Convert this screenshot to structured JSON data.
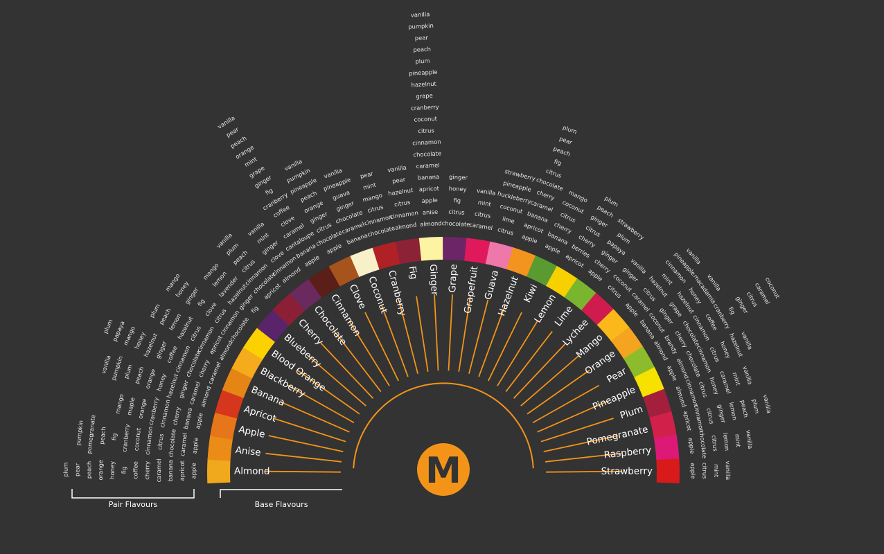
{
  "logo": {
    "letter": "M",
    "color": "#f39419"
  },
  "legend": {
    "pair_label": "Pair Flavours",
    "base_label": "Base Flavours"
  },
  "colors": {
    "background": "#333333",
    "spoke": "#f39419",
    "text": "#ffffff"
  },
  "flavours": [
    {
      "name": "Almond",
      "color": "#f0a81d",
      "pairs": [
        "apple",
        "apricot",
        "banana",
        "caramel",
        "cherry",
        "coffee",
        "fig",
        "honey",
        "orange",
        "peach",
        "pear",
        "plum"
      ]
    },
    {
      "name": "Anise",
      "color": "#ea8c16",
      "pairs": [
        "apple",
        "caramel",
        "chocolate",
        "citrus",
        "cinnamon",
        "coconut",
        "cranberry",
        "fig",
        "peach",
        "pomegranate",
        "pumpkin"
      ]
    },
    {
      "name": "Apple",
      "color": "#e7761a",
      "pairs": [
        "apple",
        "banana",
        "cherry",
        "cinnamon",
        "cranberry",
        "orange",
        "maple",
        "mango"
      ]
    },
    {
      "name": "Apricot",
      "color": "#d6361c",
      "pairs": [
        "almond",
        "caramel",
        "ginger",
        "hazelnut",
        "honey",
        "orange",
        "peach",
        "plum",
        "pumpkin",
        "vanilla"
      ]
    },
    {
      "name": "Banana",
      "color": "#e58515",
      "pairs": [
        "caramel",
        "cherry",
        "chocolate",
        "cinnamon",
        "coffee",
        "ginger",
        "hazelnut",
        "honey",
        "mango",
        "papaya",
        "plum"
      ]
    },
    {
      "name": "Blackberry",
      "color": "#f5ab1b",
      "pairs": [
        "almond",
        "apricot",
        "cinnamon",
        "citrus",
        "hazelnut",
        "lemon",
        "peach",
        "plum"
      ]
    },
    {
      "name": "Blood Orange",
      "color": "#fbd200",
      "pairs": [
        "chocolate",
        "cinnamon",
        "citrus",
        "clove",
        "fig",
        "ginger",
        "honey",
        "mango"
      ]
    },
    {
      "name": "Blueberry",
      "color": "#59246a",
      "pairs": [
        "fig",
        "ginger",
        "hazelnut",
        "lavender",
        "lemon",
        "mango"
      ]
    },
    {
      "name": "Cherry",
      "color": "#8a1f35",
      "pairs": [
        "apricot",
        "chocolate",
        "cinnamon",
        "citrus",
        "peach",
        "plum",
        "vanilla"
      ]
    },
    {
      "name": "Chocolate",
      "color": "#6a2a5e",
      "pairs": [
        "almond",
        "cinnamon",
        "clove",
        "ginger",
        "mint",
        "vanilla"
      ]
    },
    {
      "name": "Cinnamon",
      "color": "#5b1e18",
      "pairs": [
        "apple",
        "banana",
        "cantaloupe",
        "caramel",
        "clove",
        "coffee",
        "cranberry",
        "fig",
        "ginger",
        "grape",
        "mint",
        "orange",
        "peach",
        "pear",
        "vanilla"
      ]
    },
    {
      "name": "Clove",
      "color": "#a6531e",
      "pairs": [
        "apple",
        "chocolate",
        "citrus",
        "ginger",
        "orange",
        "peach",
        "pineapple",
        "pumpkin",
        "vanilla"
      ]
    },
    {
      "name": "Coconut",
      "color": "#f8f0c8",
      "pairs": [
        "banana",
        "caramel",
        "chocolate",
        "ginger",
        "guava",
        "pineapple",
        "vanilla"
      ]
    },
    {
      "name": "Cranberry",
      "color": "#b02126",
      "pairs": [
        "chocolate",
        "cinnamon",
        "citrus",
        "mango",
        "mint",
        "pear"
      ]
    },
    {
      "name": "Fig",
      "color": "#8b2236",
      "pairs": [
        "almond",
        "cinnamon",
        "citrus",
        "hazelnut",
        "pear",
        "vanilla"
      ]
    },
    {
      "name": "Ginger",
      "color": "#fdf4a3",
      "pairs": [
        "almond",
        "anise",
        "apple",
        "apricot",
        "banana",
        "caramel",
        "chocolate",
        "cinnamon",
        "citrus",
        "coconut",
        "cranberry",
        "grape",
        "hazelnut",
        "pineapple",
        "plum",
        "peach",
        "pear",
        "pumpkin",
        "vanilla"
      ]
    },
    {
      "name": "Grape",
      "color": "#6c2566",
      "pairs": [
        "chocolate",
        "citrus",
        "fig",
        "honey",
        "ginger"
      ]
    },
    {
      "name": "Grapefruit",
      "color": "#e0195c",
      "pairs": [
        "caramel",
        "citrus",
        "mint",
        "vanilla"
      ]
    },
    {
      "name": "Guava",
      "color": "#ee78aa",
      "pairs": [
        "citrus",
        "lime",
        "coconut",
        "huckleberry",
        "pineapple",
        "strawberry"
      ]
    },
    {
      "name": "Hazelnut",
      "color": "#f3941e",
      "pairs": [
        "apple",
        "apricot",
        "banana",
        "caramel",
        "cherry",
        "chocolate",
        "citrus",
        "fig",
        "peach",
        "pear",
        "plum"
      ]
    },
    {
      "name": "Kiwi",
      "color": "#5a9b31",
      "pairs": [
        "apple",
        "banana",
        "cherry",
        "citrus",
        "coconut",
        "mango"
      ]
    },
    {
      "name": "Lemon",
      "color": "#f7d000",
      "pairs": [
        "apricot",
        "berries",
        "cherry",
        "citrus",
        "ginger",
        "peach",
        "plum"
      ]
    },
    {
      "name": "Lime",
      "color": "#7ab530",
      "pairs": [
        "apple",
        "cherry",
        "ginger",
        "papaya",
        "plum",
        "strawberry"
      ]
    },
    {
      "name": "Lychee",
      "color": "#cf1b4e",
      "pairs": [
        "citrus",
        "coconut",
        "ginger",
        "vanilla"
      ]
    },
    {
      "name": "Mango",
      "color": "#fbb81a",
      "pairs": [
        "apple",
        "caramel",
        "citrus",
        "hazelnut",
        "mint",
        "cinnamon",
        "pineapple",
        "vanilla"
      ]
    },
    {
      "name": "Orange",
      "color": "#f4a41f",
      "pairs": [
        "banana",
        "coconut",
        "ginger",
        "grape",
        "hazelnut",
        "honey",
        "macadamia",
        "vanilla"
      ]
    },
    {
      "name": "Pear",
      "color": "#8cbc2c",
      "pairs": [
        "almond",
        "brandy",
        "cherry",
        "chocolate",
        "cinnamon",
        "coffee",
        "cranberry",
        "fig",
        "ginger",
        "citrus",
        "caramel",
        "coconut"
      ]
    },
    {
      "name": "Pineapple",
      "color": "#f6e100",
      "pairs": [
        "apple",
        "almond",
        "chocolate",
        "cinnamon",
        "citrus",
        "honey",
        "hazelnut",
        "vanilla"
      ]
    },
    {
      "name": "Plum",
      "color": "#a41f3c",
      "pairs": [
        "almond",
        "cinnamon",
        "citrus",
        "honey",
        "caramel",
        "mint",
        "vanilla"
      ]
    },
    {
      "name": "Pomegranate",
      "color": "#d1214a",
      "pairs": [
        "apricot",
        "cinnamon",
        "citrus",
        "ginger",
        "lemon",
        "peach",
        "plum",
        "vanilla"
      ]
    },
    {
      "name": "Raspberry",
      "color": "#dd1978",
      "pairs": [
        "apple",
        "chocolate",
        "citrus",
        "lemon",
        "mint",
        "vanilla"
      ]
    },
    {
      "name": "Strawberry",
      "color": "#d81a1a",
      "pairs": [
        "apple",
        "citrus",
        "mint",
        "vanilla"
      ]
    }
  ]
}
